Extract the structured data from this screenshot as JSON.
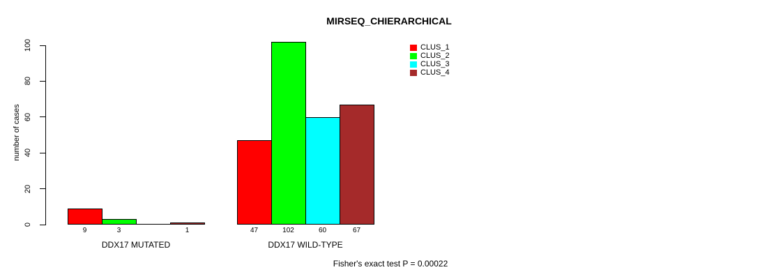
{
  "chart_data": {
    "type": "bar",
    "title": "MIRSEQ_CHIERARCHICAL",
    "ylabel": "number of cases",
    "xlabel": "",
    "sub_caption": "Fisher's exact test P = 0.00022",
    "y_ticks": [
      0,
      20,
      40,
      60,
      80,
      100
    ],
    "ylim": [
      0,
      100
    ],
    "grid": false,
    "legend_position": "top-right",
    "series": [
      {
        "name": "CLUS_1",
        "color": "#ff0000"
      },
      {
        "name": "CLUS_2",
        "color": "#00ff00"
      },
      {
        "name": "CLUS_3",
        "color": "#00ffff"
      },
      {
        "name": "CLUS_4",
        "color": "#a52a2a"
      }
    ],
    "groups": [
      {
        "label": "DDX17 MUTATED",
        "values": [
          9,
          3,
          0,
          1
        ],
        "bar_labels": [
          "9",
          "3",
          "",
          "1"
        ]
      },
      {
        "label": "DDX17 WILD-TYPE",
        "values": [
          47,
          102,
          60,
          67
        ],
        "bar_labels": [
          "47",
          "102",
          "60",
          "67"
        ]
      }
    ]
  }
}
